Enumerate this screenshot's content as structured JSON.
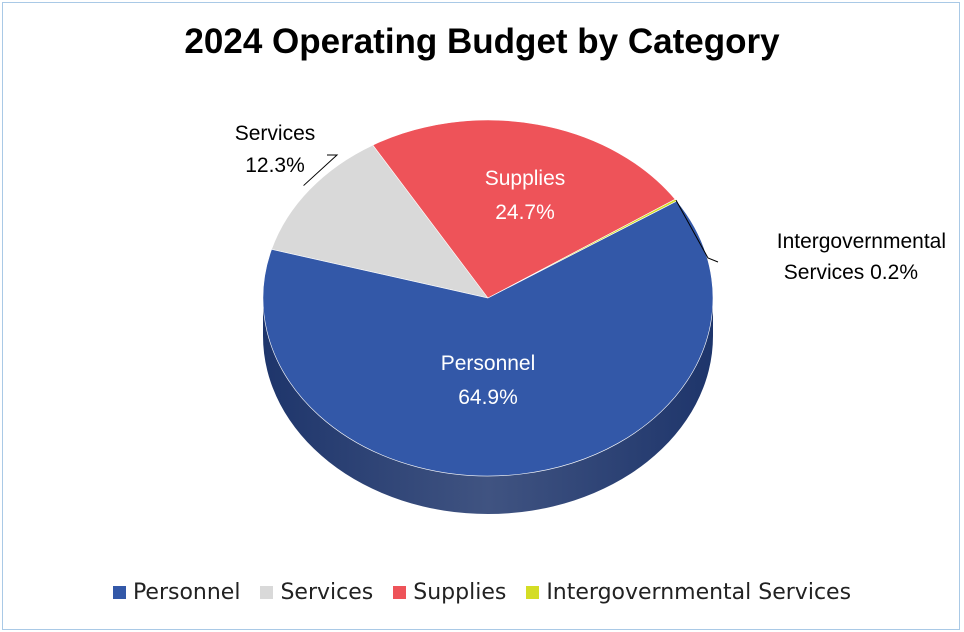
{
  "chart_data": {
    "type": "pie",
    "title": "2024 Operating Budget by Category",
    "legend_position": "bottom",
    "slices": [
      {
        "name": "Personnel",
        "value": 64.9,
        "label": "64.9%",
        "color": "#3358a8",
        "side_color": "#1e356b",
        "label_color": "#ffffff"
      },
      {
        "name": "Services",
        "value": 12.3,
        "label": "12.3%",
        "color": "#d9d9d9",
        "side_color": "#8c8c8c",
        "label_color": "#000000"
      },
      {
        "name": "Supplies",
        "value": 24.7,
        "label": "24.7%",
        "color": "#ee5359",
        "side_color": "#a33038",
        "label_color": "#ffffff"
      },
      {
        "name": "Intergovernmental Services",
        "value": 0.2,
        "label": "Services 0.2%",
        "label_line1": "Intergovernmental",
        "color": "#d4dd25",
        "side_color": "#8e9419",
        "label_color": "#000000"
      }
    ],
    "legend": [
      "Personnel",
      "Services",
      "Supplies",
      "Intergovernmental Services"
    ]
  }
}
